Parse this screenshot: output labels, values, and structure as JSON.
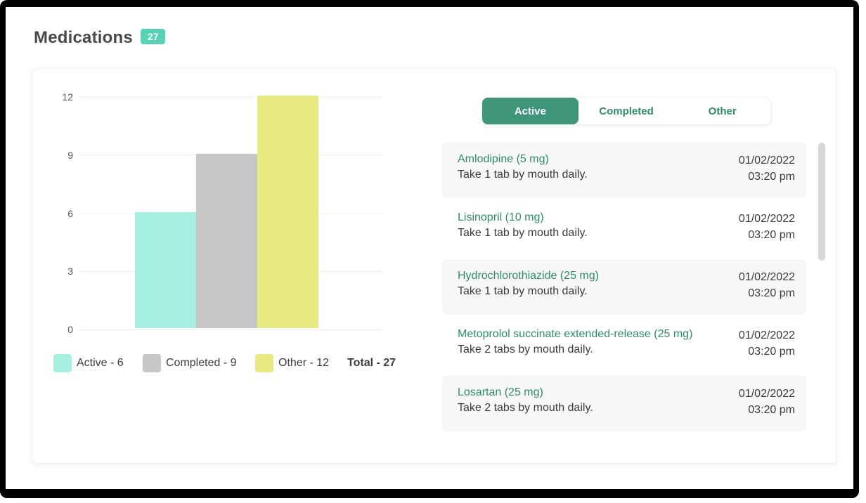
{
  "page": {
    "title": "Medications",
    "count_badge": "27"
  },
  "colors": {
    "accent_green": "#3f9579",
    "link_green": "#2e8b6e",
    "badge_teal": "#57d2b4",
    "bar_teal": "#a7efdf",
    "bar_gray": "#c6c6c6",
    "bar_yellow": "#e9e981"
  },
  "chart_data": {
    "type": "bar",
    "categories": [
      "Active",
      "Completed",
      "Other"
    ],
    "values": [
      6,
      9,
      12
    ],
    "bar_colors": [
      "#a7efdf",
      "#c6c6c6",
      "#e9e981"
    ],
    "yticks": [
      0,
      3,
      6,
      9,
      12
    ],
    "ylim": [
      0,
      12
    ],
    "grid": true,
    "legend_position": "bottom",
    "legend": [
      {
        "label": "Active - 6",
        "color": "#a7efdf"
      },
      {
        "label": "Completed - 9",
        "color": "#c6c6c6"
      },
      {
        "label": "Other - 12",
        "color": "#e9e981"
      }
    ],
    "total_label": "Total - 27"
  },
  "tabs": [
    {
      "label": "Active",
      "active": true
    },
    {
      "label": "Completed",
      "active": false
    },
    {
      "label": "Other",
      "active": false
    }
  ],
  "medications": [
    {
      "name": "Amlodipine (5 mg)",
      "instructions": "Take 1 tab by mouth daily.",
      "date": "01/02/2022",
      "time": "03:20 pm"
    },
    {
      "name": "Lisinopril (10 mg)",
      "instructions": "Take 1 tab by mouth daily.",
      "date": "01/02/2022",
      "time": "03:20 pm"
    },
    {
      "name": "Hydrochlorothiazide (25 mg)",
      "instructions": "Take 1 tab by mouth daily.",
      "date": "01/02/2022",
      "time": "03:20 pm"
    },
    {
      "name": "Metoprolol succinate extended-release (25 mg)",
      "instructions": "Take 2 tabs by mouth daily.",
      "date": "01/02/2022",
      "time": "03:20 pm"
    },
    {
      "name": "Losartan (25 mg)",
      "instructions": "Take 2 tabs by mouth daily.",
      "date": "01/02/2022",
      "time": "03:20 pm"
    }
  ]
}
